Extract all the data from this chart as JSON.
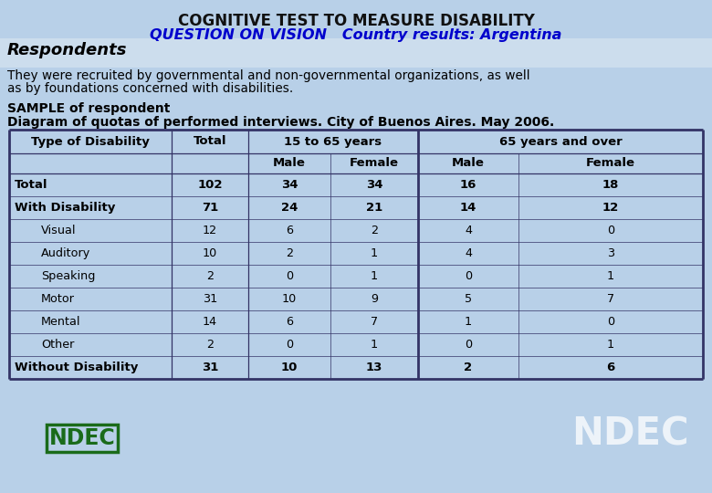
{
  "title1": "COGNITIVE TEST TO MEASURE DISABILITY",
  "title2": "QUESTION ON VISION   Country results: Argentina",
  "respondents_header": "Respondents",
  "respondents_text1": "They were recruited by governmental and non-governmental organizations, as well",
  "respondents_text2": "as by foundations concerned with disabilities.",
  "sample_line1": "SAMPLE of respondent",
  "sample_line2": "Diagram of quotas of performed interviews. City of Buenos Aires. May 2006.",
  "bg_color": "#b8d0e8",
  "title1_color": "#111111",
  "title2_color": "#0000cc",
  "border_color": "#333366",
  "rows": [
    {
      "label": "Total",
      "indent": false,
      "total": "102",
      "m1": "34",
      "f1": "34",
      "m2": "16",
      "f2": "18",
      "bold": true
    },
    {
      "label": "With Disability",
      "indent": false,
      "total": "71",
      "m1": "24",
      "f1": "21",
      "m2": "14",
      "f2": "12",
      "bold": true
    },
    {
      "label": "Visual",
      "indent": true,
      "total": "12",
      "m1": "6",
      "f1": "2",
      "m2": "4",
      "f2": "0",
      "bold": false
    },
    {
      "label": "Auditory",
      "indent": true,
      "total": "10",
      "m1": "2",
      "f1": "1",
      "m2": "4",
      "f2": "3",
      "bold": false
    },
    {
      "label": "Speaking",
      "indent": true,
      "total": "2",
      "m1": "0",
      "f1": "1",
      "m2": "0",
      "f2": "1",
      "bold": false
    },
    {
      "label": "Motor",
      "indent": true,
      "total": "31",
      "m1": "10",
      "f1": "9",
      "m2": "5",
      "f2": "7",
      "bold": false
    },
    {
      "label": "Mental",
      "indent": true,
      "total": "14",
      "m1": "6",
      "f1": "7",
      "m2": "1",
      "f2": "0",
      "bold": false
    },
    {
      "label": "Other",
      "indent": true,
      "total": "2",
      "m1": "0",
      "f1": "1",
      "m2": "0",
      "f2": "1",
      "bold": false
    },
    {
      "label": "Without Disability",
      "indent": false,
      "total": "31",
      "m1": "10",
      "f1": "13",
      "m2": "2",
      "f2": "6",
      "bold": true
    }
  ]
}
